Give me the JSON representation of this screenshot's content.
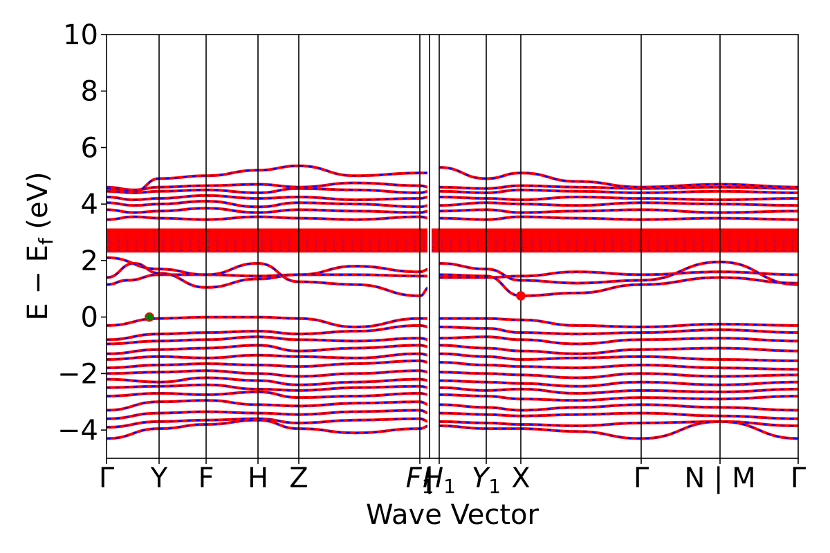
{
  "chart_data": {
    "type": "line",
    "title": "",
    "xlabel": "Wave Vector",
    "ylabel": "E − E",
    "ylabel_subscript": "f",
    "ylabel_unit": " (eV)",
    "ylim": [
      -5,
      10
    ],
    "y_ticks": [
      -4,
      -2,
      0,
      2,
      4,
      6,
      8,
      10
    ],
    "y_tick_labels": [
      "−4",
      "−2",
      "0",
      "2",
      "4",
      "6",
      "8",
      "10"
    ],
    "grid": false,
    "legend": "none",
    "x_ticks": [
      {
        "label": "Γ",
        "x": 0.0
      },
      {
        "label": "Y",
        "x": 0.076
      },
      {
        "label": "F",
        "x": 0.144
      },
      {
        "label": "H",
        "x": 0.219
      },
      {
        "label": "Z",
        "x": 0.278
      },
      {
        "label": "F",
        "sub": "1",
        "x": 0.453
      },
      {
        "label": "|",
        "x": 0.467
      },
      {
        "label": "H",
        "sub": "1",
        "x": 0.481
      },
      {
        "label": "Y",
        "sub": "1",
        "x": 0.549
      },
      {
        "label": "X",
        "x": 0.599
      },
      {
        "label": "Γ",
        "x": 0.773
      },
      {
        "label": "N | M",
        "x": 0.887
      },
      {
        "label": "Γ",
        "x": 1.0
      }
    ],
    "vertical_lines_x": [
      0.076,
      0.144,
      0.219,
      0.278,
      0.453,
      0.481,
      0.549,
      0.599,
      0.773,
      0.887
    ],
    "segment_breaks_x": [
      0.467,
      0.887
    ],
    "bands": {
      "spin_up_color": "#ff0000",
      "spin_down_color": "#0000ff",
      "valence": [
        {
          "x": [
            0,
            0.076,
            0.144,
            0.219,
            0.278,
            0.36,
            0.453,
            0.467
          ],
          "y": [
            -0.3,
            -0.05,
            0,
            0,
            -0.05,
            -0.35,
            -0.05,
            -0.05
          ]
        },
        {
          "x": [
            0.481,
            0.549,
            0.599,
            0.68,
            0.773,
            0.887,
            1
          ],
          "y": [
            -0.05,
            -0.05,
            -0.1,
            -0.3,
            -0.35,
            -0.25,
            -0.3
          ]
        },
        {
          "x": [
            0,
            0.076,
            0.144,
            0.219,
            0.278,
            0.36,
            0.453,
            0.467
          ],
          "y": [
            -0.8,
            -0.6,
            -0.55,
            -0.5,
            -0.6,
            -0.5,
            -0.3,
            -0.35
          ]
        },
        {
          "x": [
            0.481,
            0.549,
            0.599,
            0.68,
            0.773,
            0.887,
            1
          ],
          "y": [
            -0.35,
            -0.4,
            -0.55,
            -0.6,
            -0.55,
            -0.45,
            -0.55
          ]
        },
        {
          "x": [
            0,
            0.076,
            0.144,
            0.219,
            0.278,
            0.36,
            0.453,
            0.467
          ],
          "y": [
            -0.95,
            -0.85,
            -0.8,
            -0.7,
            -0.8,
            -0.85,
            -0.75,
            -0.8
          ]
        },
        {
          "x": [
            0.481,
            0.549,
            0.599,
            0.68,
            0.773,
            0.887,
            1
          ],
          "y": [
            -0.75,
            -0.7,
            -0.8,
            -0.95,
            -0.8,
            -0.75,
            -0.85
          ]
        },
        {
          "x": [
            0,
            0.076,
            0.144,
            0.219,
            0.278,
            0.36,
            0.453,
            0.467
          ],
          "y": [
            -1.3,
            -1.15,
            -1.1,
            -1.0,
            -1.2,
            -1.1,
            -1.0,
            -1.05
          ]
        },
        {
          "x": [
            0.481,
            0.549,
            0.599,
            0.68,
            0.773,
            0.887,
            1
          ],
          "y": [
            -1.0,
            -1.1,
            -1.2,
            -1.3,
            -1.15,
            -1.1,
            -1.2
          ]
        },
        {
          "x": [
            0,
            0.076,
            0.144,
            0.219,
            0.278,
            0.36,
            0.453,
            0.467
          ],
          "y": [
            -1.5,
            -1.4,
            -1.45,
            -1.35,
            -1.4,
            -1.45,
            -1.3,
            -1.35
          ]
        },
        {
          "x": [
            0.481,
            0.549,
            0.599,
            0.68,
            0.773,
            0.887,
            1
          ],
          "y": [
            -1.3,
            -1.4,
            -1.5,
            -1.45,
            -1.4,
            -1.5,
            -1.55
          ]
        },
        {
          "x": [
            0,
            0.076,
            0.144,
            0.219,
            0.278,
            0.36,
            0.453,
            0.467
          ],
          "y": [
            -1.8,
            -1.7,
            -1.65,
            -1.7,
            -1.75,
            -1.65,
            -1.55,
            -1.6
          ]
        },
        {
          "x": [
            0.481,
            0.549,
            0.599,
            0.68,
            0.773,
            0.887,
            1
          ],
          "y": [
            -1.6,
            -1.7,
            -1.75,
            -1.8,
            -1.7,
            -1.8,
            -1.85
          ]
        },
        {
          "x": [
            0,
            0.076,
            0.144,
            0.219,
            0.278,
            0.36,
            0.453,
            0.467
          ],
          "y": [
            -2.0,
            -1.95,
            -1.9,
            -2.0,
            -2.1,
            -2.0,
            -1.9,
            -1.95
          ]
        },
        {
          "x": [
            0.481,
            0.549,
            0.599,
            0.68,
            0.773,
            0.887,
            1
          ],
          "y": [
            -1.95,
            -2.0,
            -2.05,
            -2.15,
            -2.0,
            -2.1,
            -2.05
          ]
        },
        {
          "x": [
            0,
            0.076,
            0.144,
            0.219,
            0.278,
            0.36,
            0.453,
            0.467
          ],
          "y": [
            -2.2,
            -2.3,
            -2.15,
            -2.25,
            -2.4,
            -2.3,
            -2.2,
            -2.25
          ]
        },
        {
          "x": [
            0.481,
            0.549,
            0.599,
            0.68,
            0.773,
            0.887,
            1
          ],
          "y": [
            -2.25,
            -2.3,
            -2.35,
            -2.45,
            -2.3,
            -2.4,
            -2.3
          ]
        },
        {
          "x": [
            0,
            0.076,
            0.144,
            0.219,
            0.278,
            0.36,
            0.453,
            0.467
          ],
          "y": [
            -2.5,
            -2.45,
            -2.4,
            -2.55,
            -2.6,
            -2.5,
            -2.45,
            -2.5
          ]
        },
        {
          "x": [
            0.481,
            0.549,
            0.599,
            0.68,
            0.773,
            0.887,
            1
          ],
          "y": [
            -2.5,
            -2.6,
            -2.55,
            -2.7,
            -2.6,
            -2.65,
            -2.55
          ]
        },
        {
          "x": [
            0,
            0.076,
            0.144,
            0.219,
            0.278,
            0.36,
            0.453,
            0.467
          ],
          "y": [
            -2.8,
            -2.7,
            -2.75,
            -2.65,
            -2.85,
            -2.8,
            -2.7,
            -2.75
          ]
        },
        {
          "x": [
            0.481,
            0.549,
            0.599,
            0.68,
            0.773,
            0.887,
            1
          ],
          "y": [
            -2.75,
            -2.8,
            -2.9,
            -2.95,
            -2.85,
            -2.9,
            -2.8
          ]
        },
        {
          "x": [
            0,
            0.076,
            0.144,
            0.219,
            0.278,
            0.36,
            0.453,
            0.467
          ],
          "y": [
            -3.3,
            -3.0,
            -2.95,
            -3.1,
            -3.15,
            -3.05,
            -3.0,
            -3.1
          ]
        },
        {
          "x": [
            0.481,
            0.549,
            0.599,
            0.68,
            0.773,
            0.887,
            1
          ],
          "y": [
            -3.1,
            -3.2,
            -3.3,
            -3.2,
            -3.1,
            -3.2,
            -3.3
          ]
        },
        {
          "x": [
            0,
            0.076,
            0.144,
            0.219,
            0.278,
            0.36,
            0.453,
            0.467
          ],
          "y": [
            -3.6,
            -3.4,
            -3.35,
            -3.4,
            -3.45,
            -3.35,
            -3.3,
            -3.4
          ]
        },
        {
          "x": [
            0.481,
            0.549,
            0.599,
            0.68,
            0.773,
            0.887,
            1
          ],
          "y": [
            -3.4,
            -3.45,
            -3.5,
            -3.45,
            -3.4,
            -3.5,
            -3.6
          ]
        },
        {
          "x": [
            0,
            0.076,
            0.144,
            0.219,
            0.278,
            0.36,
            0.453,
            0.467
          ],
          "y": [
            -3.9,
            -3.7,
            -3.65,
            -3.6,
            -3.75,
            -3.65,
            -3.6,
            -3.7
          ]
        },
        {
          "x": [
            0.481,
            0.549,
            0.599,
            0.68,
            0.773,
            0.887,
            1
          ],
          "y": [
            -3.7,
            -3.75,
            -3.8,
            -3.85,
            -3.75,
            -3.7,
            -3.85
          ]
        },
        {
          "x": [
            0,
            0.076,
            0.144,
            0.219,
            0.278,
            0.36,
            0.453,
            0.467
          ],
          "y": [
            -4.3,
            -3.95,
            -3.8,
            -3.65,
            -3.95,
            -4.1,
            -3.95,
            -3.85
          ]
        },
        {
          "x": [
            0.481,
            0.549,
            0.599,
            0.68,
            0.773,
            0.887,
            1
          ],
          "y": [
            -3.85,
            -3.95,
            -3.95,
            -4.05,
            -4.3,
            -3.7,
            -4.3
          ]
        }
      ],
      "lower_conduction": [
        {
          "x": [
            0,
            0.03,
            0.076,
            0.144,
            0.219,
            0.278,
            0.36,
            0.453,
            0.467
          ],
          "y": [
            1.15,
            1.3,
            1.5,
            1.5,
            1.45,
            1.5,
            1.5,
            1.45,
            1.45
          ]
        },
        {
          "x": [
            0.481,
            0.549,
            0.599,
            0.68,
            0.773,
            0.887,
            1
          ],
          "y": [
            1.4,
            1.4,
            1.45,
            1.6,
            1.5,
            1.6,
            1.5
          ]
        },
        {
          "x": [
            0,
            0.04,
            0.076,
            0.144,
            0.219,
            0.278,
            0.36,
            0.453,
            0.467
          ],
          "y": [
            1.4,
            1.9,
            1.55,
            1.05,
            1.35,
            1.5,
            1.8,
            1.6,
            1.7
          ]
        },
        {
          "x": [
            0.481,
            0.549,
            0.599,
            0.68,
            0.773,
            0.887,
            1
          ],
          "y": [
            1.9,
            1.7,
            1.3,
            1.2,
            1.3,
            1.95,
            1.15
          ]
        },
        {
          "x": [
            0,
            0.076,
            0.144,
            0.219,
            0.278,
            0.36,
            0.453,
            0.467
          ],
          "y": [
            2.1,
            1.7,
            1.5,
            1.9,
            1.25,
            1.15,
            0.75,
            1.05
          ]
        },
        {
          "x": [
            0.481,
            0.549,
            0.599,
            0.68,
            0.773,
            0.887,
            1
          ],
          "y": [
            1.5,
            1.45,
            0.75,
            0.85,
            1.15,
            1.4,
            1.2
          ]
        }
      ],
      "dense_block": {
        "y_min": 2.3,
        "y_max": 3.1,
        "lines": [
          2.32,
          2.42,
          2.52,
          2.6,
          2.68,
          2.76,
          2.84,
          2.92,
          3.0,
          3.1
        ]
      },
      "upper_conduction": [
        {
          "x": [
            0,
            0.04,
            0.076,
            0.144,
            0.219,
            0.278,
            0.36,
            0.453,
            0.467
          ],
          "y": [
            3.45,
            3.55,
            3.5,
            3.45,
            3.55,
            3.5,
            3.45,
            3.55,
            3.5
          ]
        },
        {
          "x": [
            0.481,
            0.549,
            0.599,
            0.68,
            0.773,
            0.887,
            1
          ],
          "y": [
            3.5,
            3.45,
            3.55,
            3.5,
            3.45,
            3.5,
            3.45
          ]
        },
        {
          "x": [
            0,
            0.04,
            0.076,
            0.144,
            0.219,
            0.278,
            0.36,
            0.453,
            0.467
          ],
          "y": [
            3.8,
            3.7,
            3.75,
            3.85,
            3.7,
            3.8,
            3.75,
            3.7,
            3.75
          ]
        },
        {
          "x": [
            0.481,
            0.549,
            0.599,
            0.68,
            0.773,
            0.887,
            1
          ],
          "y": [
            3.75,
            3.8,
            3.7,
            3.75,
            3.8,
            3.7,
            3.75
          ]
        },
        {
          "x": [
            0,
            0.04,
            0.076,
            0.144,
            0.219,
            0.278,
            0.36,
            0.453,
            0.467
          ],
          "y": [
            4.05,
            3.95,
            4.0,
            4.1,
            3.9,
            4.05,
            4.0,
            3.9,
            3.95
          ]
        },
        {
          "x": [
            0.481,
            0.549,
            0.599,
            0.68,
            0.773,
            0.887,
            1
          ],
          "y": [
            3.95,
            4.05,
            4.0,
            3.95,
            4.05,
            4.0,
            3.95
          ]
        },
        {
          "x": [
            0,
            0.04,
            0.076,
            0.144,
            0.219,
            0.278,
            0.36,
            0.453,
            0.467
          ],
          "y": [
            4.25,
            4.15,
            4.2,
            4.3,
            4.2,
            4.25,
            4.15,
            4.2,
            4.25
          ]
        },
        {
          "x": [
            0.481,
            0.549,
            0.599,
            0.68,
            0.773,
            0.887,
            1
          ],
          "y": [
            4.25,
            4.2,
            4.15,
            4.25,
            4.2,
            4.15,
            4.2
          ]
        },
        {
          "x": [
            0,
            0.04,
            0.076,
            0.144,
            0.219,
            0.278,
            0.36,
            0.453,
            0.467
          ],
          "y": [
            4.45,
            4.4,
            4.45,
            4.5,
            4.4,
            4.55,
            4.5,
            4.4,
            4.45
          ]
        },
        {
          "x": [
            0.481,
            0.549,
            0.599,
            0.68,
            0.773,
            0.887,
            1
          ],
          "y": [
            4.45,
            4.4,
            4.5,
            4.45,
            4.4,
            4.45,
            4.4
          ]
        },
        {
          "x": [
            0,
            0.04,
            0.076,
            0.144,
            0.219,
            0.278,
            0.36,
            0.453,
            0.467
          ],
          "y": [
            4.6,
            4.5,
            4.6,
            4.65,
            4.7,
            4.6,
            4.75,
            4.65,
            4.6
          ]
        },
        {
          "x": [
            0.481,
            0.549,
            0.599,
            0.68,
            0.773,
            0.887,
            1
          ],
          "y": [
            4.6,
            4.55,
            4.65,
            4.6,
            4.55,
            4.6,
            4.55
          ]
        },
        {
          "x": [
            0,
            0.04,
            0.076,
            0.144,
            0.219,
            0.278,
            0.36,
            0.453,
            0.467
          ],
          "y": [
            4.55,
            4.45,
            4.9,
            5.0,
            5.2,
            5.35,
            5.0,
            5.1,
            5.1
          ]
        },
        {
          "x": [
            0.481,
            0.549,
            0.599,
            0.68,
            0.773,
            0.887,
            1
          ],
          "y": [
            5.3,
            4.9,
            5.1,
            4.8,
            4.6,
            4.7,
            4.6
          ]
        }
      ]
    },
    "markers": [
      {
        "x": 0.062,
        "y": 0.0,
        "color": "#008000",
        "edge": "#ff0000"
      },
      {
        "x": 0.599,
        "y": 0.75,
        "color": "#ff0000",
        "edge": "#ff0000"
      }
    ]
  }
}
